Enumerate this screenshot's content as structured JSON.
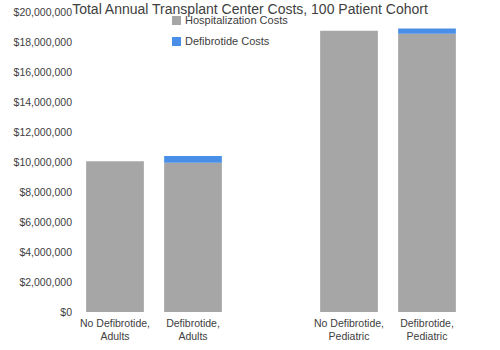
{
  "chart_data": {
    "type": "bar",
    "title": "Total Annual Transplant Center Costs, 100 Patient Cohort",
    "categories": [
      "No Defibrotide, Adults",
      "Defibrotide, Adults",
      null,
      "No Defibrotide, Pediatric",
      "Defibrotide, Pediatric"
    ],
    "series": [
      {
        "name": "Hospitalization Costs",
        "color": "#a6a6a6",
        "values": [
          10050000,
          9950000,
          null,
          18750000,
          18550000
        ]
      },
      {
        "name": "Defibrotide Costs",
        "color": "#4a8fe7",
        "values": [
          0,
          450000,
          null,
          0,
          350000
        ]
      }
    ],
    "stacked": true,
    "legend": "upper left",
    "grid": false,
    "ylim": [
      0,
      20000000
    ],
    "yticks": [
      {
        "value": 0,
        "label": "$0"
      },
      {
        "value": 2000000,
        "label": "$2,000,000"
      },
      {
        "value": 4000000,
        "label": "$4,000,000"
      },
      {
        "value": 6000000,
        "label": "$6,000,000"
      },
      {
        "value": 8000000,
        "label": "$8,000,000"
      },
      {
        "value": 10000000,
        "label": "$10,000,000"
      },
      {
        "value": 12000000,
        "label": "$12,000,000"
      },
      {
        "value": 14000000,
        "label": "$14,000,000"
      },
      {
        "value": 16000000,
        "label": "$16,000,000"
      },
      {
        "value": 18000000,
        "label": "$18,000,000"
      },
      {
        "value": 20000000,
        "label": "$20,000,000"
      }
    ]
  }
}
